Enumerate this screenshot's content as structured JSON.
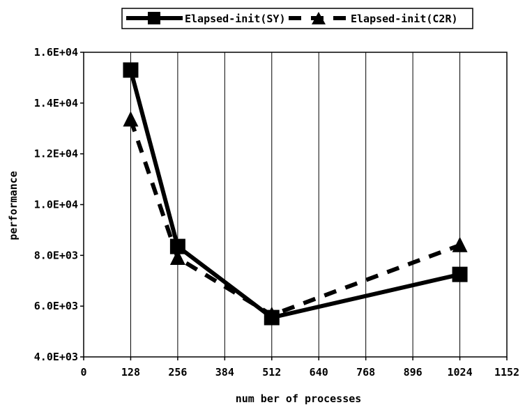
{
  "chart_data": {
    "type": "line",
    "title": "",
    "xlabel": "num ber of processes",
    "ylabel": "performance",
    "x": [
      128,
      256,
      512,
      1024
    ],
    "xlim": [
      0,
      1152
    ],
    "ylim": [
      4000,
      16000
    ],
    "xticks": [
      "0",
      "128",
      "256",
      "384",
      "512",
      "640",
      "768",
      "896",
      "1024",
      "1152"
    ],
    "yticks": [
      "4.0E+03",
      "6.0E+03",
      "8.0E+03",
      "1.0E+04",
      "1.2E+04",
      "1.4E+04",
      "1.6E+04"
    ],
    "grid": "vertical",
    "legend_position": "top-center",
    "series": [
      {
        "name": "Elapsed-init(SY)",
        "values": [
          15300,
          8350,
          5550,
          7250
        ],
        "style": "solid",
        "marker": "square",
        "color": "#000000"
      },
      {
        "name": "Elapsed-init(C2R)",
        "values": [
          13350,
          7900,
          5650,
          8400
        ],
        "style": "dashed",
        "marker": "triangle",
        "color": "#000000"
      }
    ]
  }
}
